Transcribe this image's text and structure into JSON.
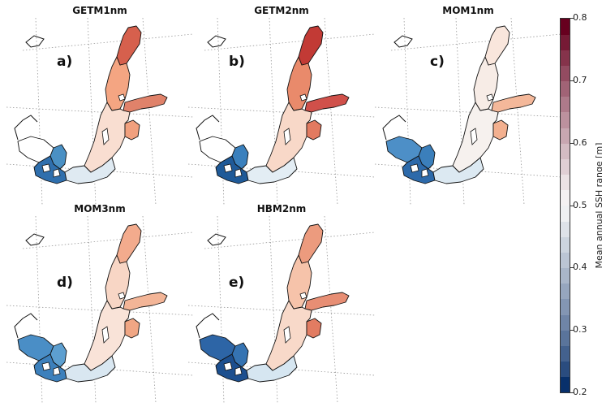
{
  "panels": [
    {
      "title": "GETM1nm",
      "letter": "a)",
      "scheme": "a"
    },
    {
      "title": "GETM2nm",
      "letter": "b)",
      "scheme": "b"
    },
    {
      "title": "MOM1nm",
      "letter": "c)",
      "scheme": "c"
    },
    {
      "title": "MOM3nm",
      "letter": "d)",
      "scheme": "d"
    },
    {
      "title": "HBM2nm",
      "letter": "e)",
      "scheme": "e"
    }
  ],
  "colorbar": {
    "label": "Mean annual SSH range [m]",
    "min": 0.2,
    "max": 0.8,
    "ticks": [
      "0.8",
      "0.7",
      "0.6",
      "0.5",
      "0.4",
      "0.3",
      "0.2"
    ],
    "low_color": "#08306b",
    "mid_color": "#f7f7f7",
    "high_color": "#67001f"
  },
  "regions": {
    "a": {
      "bothnian_bay": "#d6604d",
      "bothnian_sea": "#f4a582",
      "gulf_finland": "#e0826a",
      "gulf_riga": "#f1a07e",
      "baltic_proper": "#f9ded1",
      "southern_baltic": "#dfeaf2",
      "kattegat": "#4a90c4",
      "belts": "#2f6fad",
      "skagerrak": "#ffffff"
    },
    "b": {
      "bothnian_bay": "#c23a35",
      "bothnian_sea": "#e98a6b",
      "gulf_finland": "#d0504a",
      "gulf_riga": "#e27a60",
      "baltic_proper": "#f8d8c8",
      "southern_baltic": "#e3edf4",
      "kattegat": "#3a80bd",
      "belts": "#1f5a98",
      "skagerrak": "#ffffff"
    },
    "c": {
      "bothnian_bay": "#f9e6dc",
      "bothnian_sea": "#f7ece6",
      "gulf_finland": "#f4b89a",
      "gulf_riga": "#f3b08f",
      "baltic_proper": "#f6f1ee",
      "southern_baltic": "#dce9f2",
      "kattegat": "#3b7fbb",
      "belts": "#2d6aaa",
      "skagerrak": "#4d8fc7"
    },
    "d": {
      "bothnian_bay": "#f3ab8d",
      "bothnian_sea": "#f8d6c5",
      "gulf_finland": "#f3b597",
      "gulf_riga": "#f0a684",
      "baltic_proper": "#f9e3d8",
      "southern_baltic": "#d9e7f1",
      "kattegat": "#5d9fd0",
      "belts": "#3c80bc",
      "skagerrak": "#4a8ec6"
    },
    "e": {
      "bothnian_bay": "#ec9b7e",
      "bothnian_sea": "#f6c3aa",
      "gulf_finland": "#e78e74",
      "gulf_riga": "#e27c62",
      "baltic_proper": "#f8d9c9",
      "southern_baltic": "#d6e6f1",
      "kattegat": "#3573b2",
      "belts": "#1c4f8f",
      "skagerrak": "#2d65a6"
    }
  }
}
